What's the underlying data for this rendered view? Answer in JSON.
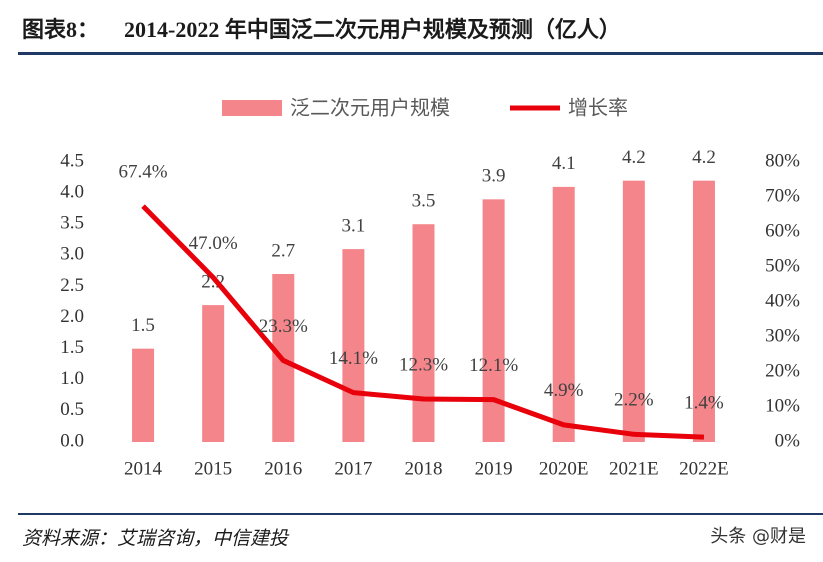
{
  "header": {
    "label": "图表8：",
    "title": "2014-2022 年中国泛二次元用户规模及预测（亿人）"
  },
  "chart_data": {
    "type": "combo",
    "categories": [
      "2014",
      "2015",
      "2016",
      "2017",
      "2018",
      "2019",
      "2020E",
      "2021E",
      "2022E"
    ],
    "series": [
      {
        "name": "泛二次元用户规模",
        "type": "bar",
        "color": "#f4858a",
        "values": [
          1.5,
          2.2,
          2.7,
          3.1,
          3.5,
          3.9,
          4.1,
          4.2,
          4.2
        ]
      },
      {
        "name": "增长率",
        "type": "line",
        "axis": "y2",
        "color": "#e8000b",
        "values": [
          67.4,
          47.0,
          23.3,
          14.1,
          12.3,
          12.1,
          4.9,
          2.2,
          1.4
        ],
        "value_labels": [
          "67.4%",
          "47.0%",
          "23.3%",
          "14.1%",
          "12.3%",
          "12.1%",
          "4.9%",
          "2.2%",
          "1.4%"
        ]
      }
    ],
    "ylim": [
      0,
      4.5
    ],
    "yticks": [
      {
        "value": 0,
        "label": "0.0"
      },
      0.5,
      {
        "value": 1,
        "label": "1.0"
      },
      1.5,
      {
        "value": 2,
        "label": "2.0"
      },
      2.5,
      {
        "value": 3,
        "label": "3.0"
      },
      3.5,
      {
        "value": 4,
        "label": "4.0"
      },
      4.5
    ],
    "y2lim": [
      0,
      80
    ],
    "y2ticks": [
      {
        "value": 0,
        "label": "0%"
      },
      {
        "value": 10,
        "label": "10%"
      },
      {
        "value": 20,
        "label": "20%"
      },
      {
        "value": 30,
        "label": "30%"
      },
      {
        "value": 40,
        "label": "40%"
      },
      {
        "value": 50,
        "label": "50%"
      },
      {
        "value": 60,
        "label": "60%"
      },
      {
        "value": 70,
        "label": "70%"
      },
      {
        "value": 80,
        "label": "80%"
      }
    ],
    "legend": "top"
  },
  "footer": {
    "source": "资料来源：艾瑞咨询，中信建投",
    "watermark": "头条 @财是"
  }
}
